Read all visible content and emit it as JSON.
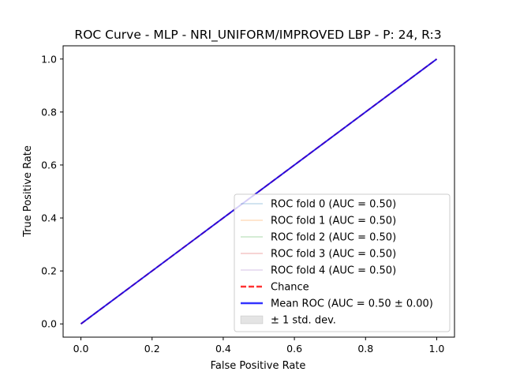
{
  "chart_data": {
    "type": "line",
    "title": "ROC Curve - MLP - NRI_UNIFORM/IMPROVED LBP - P: 24, R:3",
    "xlabel": "False Positive Rate",
    "ylabel": "True Positive Rate",
    "xlim": [
      -0.05,
      1.05
    ],
    "ylim": [
      -0.05,
      1.05
    ],
    "xticks": [
      0.0,
      0.2,
      0.4,
      0.6,
      0.8,
      1.0
    ],
    "yticks": [
      0.0,
      0.2,
      0.4,
      0.6,
      0.8,
      1.0
    ],
    "xtick_labels": [
      "0.0",
      "0.2",
      "0.4",
      "0.6",
      "0.8",
      "1.0"
    ],
    "ytick_labels": [
      "0.0",
      "0.2",
      "0.4",
      "0.6",
      "0.8",
      "1.0"
    ],
    "grid": false,
    "legend_position": "lower right",
    "series": [
      {
        "name": "ROC fold 0 (AUC = 0.50)",
        "color": "#1f77b4",
        "style": "solid",
        "opacity": 0.4,
        "x": [
          0,
          1
        ],
        "y": [
          0,
          1
        ]
      },
      {
        "name": "ROC fold 1 (AUC = 0.50)",
        "color": "#ff7f0e",
        "style": "solid",
        "opacity": 0.4,
        "x": [
          0,
          1
        ],
        "y": [
          0,
          1
        ]
      },
      {
        "name": "ROC fold 2 (AUC = 0.50)",
        "color": "#2ca02c",
        "style": "solid",
        "opacity": 0.4,
        "x": [
          0,
          1
        ],
        "y": [
          0,
          1
        ]
      },
      {
        "name": "ROC fold 3 (AUC = 0.50)",
        "color": "#d62728",
        "style": "solid",
        "opacity": 0.4,
        "x": [
          0,
          1
        ],
        "y": [
          0,
          1
        ]
      },
      {
        "name": "ROC fold 4 (AUC = 0.50)",
        "color": "#9467bd",
        "style": "solid",
        "opacity": 0.4,
        "x": [
          0,
          1
        ],
        "y": [
          0,
          1
        ]
      },
      {
        "name": "Chance",
        "color": "#ff0000",
        "style": "dashed",
        "opacity": 0.8,
        "x": [
          0,
          1
        ],
        "y": [
          0,
          1
        ]
      },
      {
        "name": "Mean ROC (AUC = 0.50 ± 0.00)",
        "color": "#0000ff",
        "style": "solid",
        "opacity": 0.8,
        "x": [
          0,
          1
        ],
        "y": [
          0,
          1
        ]
      }
    ],
    "band": {
      "name": "± 1 std. dev.",
      "color": "#bbbbbb",
      "opacity": 0.4
    }
  }
}
